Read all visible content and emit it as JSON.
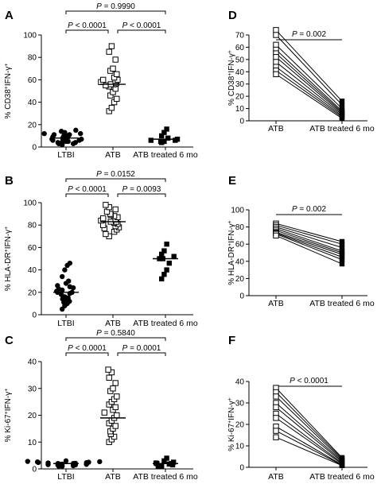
{
  "charts": [
    {
      "panel": "A",
      "type": "scatter",
      "ylabel_main": "% CD38",
      "ylabel_sup1": "+",
      "ylabel_mid": "IFN-γ",
      "ylabel_sup2": "+",
      "yticks": [
        "0",
        "20",
        "40",
        "60",
        "80",
        "100"
      ],
      "categories": [
        "LTBI",
        "ATB",
        "ATB treated 6 mo"
      ],
      "groups": [
        {
          "name": "LTBI",
          "marker": "circle-filled",
          "median": 8,
          "values": [
            2,
            3,
            3,
            4,
            4,
            5,
            5,
            5,
            6,
            6,
            7,
            7,
            8,
            8,
            9,
            9,
            10,
            10,
            11,
            11,
            12,
            12,
            13,
            14,
            15
          ]
        },
        {
          "name": "ATB",
          "marker": "square-open",
          "median": 56,
          "values": [
            32,
            35,
            40,
            43,
            46,
            49,
            52,
            54,
            55,
            56,
            56,
            57,
            58,
            59,
            60,
            60,
            62,
            65,
            68,
            70,
            78,
            85,
            90
          ]
        },
        {
          "name": "ATB treated 6 mo",
          "marker": "square-filled",
          "median": 7,
          "values": [
            4,
            5,
            5,
            6,
            6,
            7,
            8,
            10,
            13,
            16
          ]
        }
      ],
      "comparisons": [
        {
          "p": "0.9990",
          "from": 0,
          "to": 2
        },
        {
          "p": "< 0.0001",
          "from": 0,
          "to": 1
        },
        {
          "p": "< 0.0001",
          "from": 1,
          "to": 2
        }
      ]
    },
    {
      "panel": "B",
      "type": "scatter",
      "ylabel_main": "% HLA-DR",
      "ylabel_sup1": "+",
      "ylabel_mid": "IFN-γ",
      "ylabel_sup2": "+",
      "yticks": [
        "0",
        "20",
        "40",
        "60",
        "80",
        "100"
      ],
      "categories": [
        "LTBI",
        "ATB",
        "ATB treated 6 mo"
      ],
      "groups": [
        {
          "name": "LTBI",
          "marker": "circle-filled",
          "median": 20,
          "values": [
            5,
            8,
            10,
            11,
            12,
            13,
            14,
            15,
            16,
            18,
            19,
            20,
            20,
            21,
            22,
            23,
            24,
            25,
            26,
            28,
            30,
            34,
            40,
            44,
            46
          ]
        },
        {
          "name": "ATB",
          "marker": "square-open",
          "median": 83,
          "values": [
            70,
            72,
            74,
            76,
            77,
            78,
            79,
            80,
            81,
            82,
            83,
            83,
            84,
            85,
            86,
            87,
            88,
            89,
            90,
            92,
            94,
            96,
            98
          ]
        },
        {
          "name": "ATB treated 6 mo",
          "marker": "square-filled",
          "median": 50,
          "values": [
            32,
            36,
            40,
            46,
            50,
            50,
            52,
            54,
            57,
            63
          ]
        }
      ],
      "comparisons": [
        {
          "p": "0.0152",
          "from": 0,
          "to": 2
        },
        {
          "p": "< 0.0001",
          "from": 0,
          "to": 1
        },
        {
          "p": "0.0093",
          "from": 1,
          "to": 2
        }
      ]
    },
    {
      "panel": "C",
      "type": "scatter",
      "ylabel_main": "% Ki-67",
      "ylabel_sup1": "+",
      "ylabel_mid": "IFN-γ",
      "ylabel_sup2": "+",
      "yticks": [
        "0",
        "10",
        "20",
        "30",
        "40"
      ],
      "categories": [
        "LTBI",
        "ATB",
        "ATB treated 6 mo"
      ],
      "groups": [
        {
          "name": "LTBI",
          "marker": "circle-filled",
          "median": 2,
          "values": [
            1,
            1,
            1.2,
            1.4,
            1.5,
            1.6,
            1.7,
            1.8,
            1.9,
            2,
            2,
            2.1,
            2.2,
            2.3,
            2.4,
            2.5,
            2.6,
            2.7,
            2.8,
            3
          ]
        },
        {
          "name": "ATB",
          "marker": "square-open",
          "median": 19,
          "values": [
            10,
            11,
            12,
            13,
            14,
            15,
            16,
            17,
            18,
            19,
            20,
            21,
            22,
            23,
            24,
            25,
            26,
            27,
            29,
            30,
            32,
            34,
            36,
            37
          ]
        },
        {
          "name": "ATB treated 6 mo",
          "marker": "square-filled",
          "median": 2,
          "values": [
            1,
            1,
            1.5,
            1.8,
            2,
            2,
            2.2,
            2.5,
            3,
            4
          ]
        }
      ],
      "comparisons": [
        {
          "p": "0.5840",
          "from": 0,
          "to": 2
        },
        {
          "p": "< 0.0001",
          "from": 0,
          "to": 1
        },
        {
          "p": "0.0001",
          "from": 1,
          "to": 2
        }
      ]
    },
    {
      "panel": "D",
      "type": "line",
      "ylabel_main": "% CD38",
      "ylabel_sup1": "+",
      "ylabel_mid": "IFN-γ",
      "ylabel_sup2": "+",
      "yticks": [
        "0",
        "10",
        "20",
        "30",
        "40",
        "50",
        "60",
        "70"
      ],
      "categories": [
        "ATB",
        "ATB treated 6 mo"
      ],
      "pairs": [
        [
          74,
          16
        ],
        [
          70,
          13
        ],
        [
          62,
          10
        ],
        [
          58,
          8
        ],
        [
          55,
          7
        ],
        [
          52,
          6
        ],
        [
          48,
          5
        ],
        [
          44,
          4
        ],
        [
          41,
          3
        ],
        [
          38,
          2
        ]
      ],
      "p": "0.002"
    },
    {
      "panel": "E",
      "type": "line",
      "ylabel_main": "% HLA-DR",
      "ylabel_sup1": "+",
      "ylabel_mid": "IFN-γ",
      "ylabel_sup2": "+",
      "yticks": [
        "0",
        "20",
        "40",
        "60",
        "80",
        "100"
      ],
      "categories": [
        "ATB",
        "ATB treated 6 mo"
      ],
      "pairs": [
        [
          84,
          63
        ],
        [
          82,
          60
        ],
        [
          80,
          56
        ],
        [
          78,
          52
        ],
        [
          76,
          50
        ],
        [
          74,
          48
        ],
        [
          73,
          45
        ],
        [
          72,
          42
        ],
        [
          70,
          37
        ]
      ],
      "p": "0.002"
    },
    {
      "panel": "F",
      "type": "line",
      "ylabel_main": "% Ki-67",
      "ylabel_sup1": "+",
      "ylabel_mid": "IFN-γ",
      "ylabel_sup2": "+",
      "yticks": [
        "0",
        "10",
        "20",
        "30",
        "40"
      ],
      "categories": [
        "ATB",
        "ATB treated 6 mo"
      ],
      "pairs": [
        [
          37,
          4.5
        ],
        [
          35,
          4
        ],
        [
          33,
          3.5
        ],
        [
          30,
          3
        ],
        [
          28,
          2.5
        ],
        [
          25,
          2
        ],
        [
          23,
          1.6
        ],
        [
          19,
          1.2
        ],
        [
          17,
          1
        ],
        [
          14,
          0.8
        ]
      ],
      "p": "< 0.0001"
    }
  ]
}
